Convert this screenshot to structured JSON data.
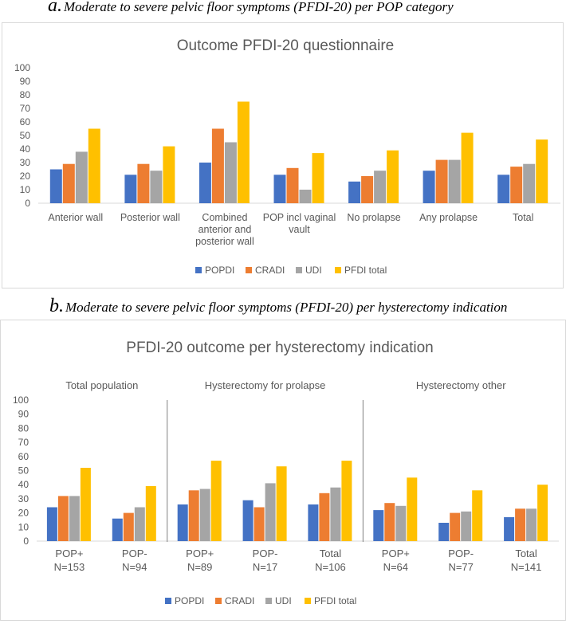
{
  "caption_a": {
    "letter": "a.",
    "text": "Moderate to severe pelvic floor symptoms (PFDI-20) per POP category"
  },
  "caption_b": {
    "letter": "b.",
    "text": "Moderate to severe pelvic floor symptoms (PFDI-20) per hysterectomy indication"
  },
  "colors": {
    "POPDI": "#4472c4",
    "CRADI": "#ed7d31",
    "UDI": "#a5a5a5",
    "PFDI total": "#ffc000"
  },
  "chart_data": [
    {
      "type": "bar",
      "title": "Outcome PFDI-20 questionnaire",
      "categories": [
        [
          "Anterior wall"
        ],
        [
          "Posterior wall"
        ],
        [
          "Combined",
          "anterior and",
          "posterior wall"
        ],
        [
          "POP incl vaginal",
          "vault"
        ],
        [
          "No prolapse"
        ],
        [
          "Any prolapse"
        ],
        [
          "Total"
        ]
      ],
      "series": [
        {
          "name": "POPDI",
          "values": [
            25,
            21,
            30,
            21,
            16,
            24,
            21
          ]
        },
        {
          "name": "CRADI",
          "values": [
            29,
            29,
            55,
            26,
            20,
            32,
            27
          ]
        },
        {
          "name": "UDI",
          "values": [
            38,
            24,
            45,
            10,
            24,
            32,
            29
          ]
        },
        {
          "name": "PFDI total",
          "values": [
            55,
            42,
            75,
            37,
            39,
            52,
            47
          ]
        }
      ],
      "ylim": [
        0,
        100
      ],
      "yticks": [
        "0",
        "10",
        "20",
        "30",
        "40",
        "50",
        "60",
        "70",
        "80",
        "90",
        "100"
      ],
      "legend": "bottom"
    },
    {
      "type": "bar",
      "title": "PFDI-20 outcome per hysterectomy indication",
      "groups": [
        {
          "label": "Total population",
          "size": 2
        },
        {
          "label": "Hysterectomy for prolapse",
          "size": 3
        },
        {
          "label": "Hysterectomy other",
          "size": 3
        }
      ],
      "categories": [
        [
          "POP+",
          "N=153"
        ],
        [
          "POP-",
          "N=94"
        ],
        [
          "POP+",
          "N=89"
        ],
        [
          "POP-",
          "N=17"
        ],
        [
          "Total",
          "N=106"
        ],
        [
          "POP+",
          "N=64"
        ],
        [
          "POP-",
          "N=77"
        ],
        [
          "Total",
          "N=141"
        ]
      ],
      "series": [
        {
          "name": "POPDI",
          "values": [
            24,
            16,
            26,
            29,
            26,
            22,
            13,
            17
          ]
        },
        {
          "name": "CRADI",
          "values": [
            32,
            20,
            36,
            24,
            34,
            27,
            20,
            23
          ]
        },
        {
          "name": "UDI",
          "values": [
            32,
            24,
            37,
            41,
            38,
            25,
            21,
            23
          ]
        },
        {
          "name": "PFDI total",
          "values": [
            52,
            39,
            57,
            53,
            57,
            45,
            36,
            40
          ]
        }
      ],
      "ylim": [
        0,
        100
      ],
      "yticks": [
        "0",
        "10",
        "20",
        "30",
        "40",
        "50",
        "60",
        "70",
        "80",
        "90",
        "100"
      ],
      "legend": "bottom"
    }
  ]
}
